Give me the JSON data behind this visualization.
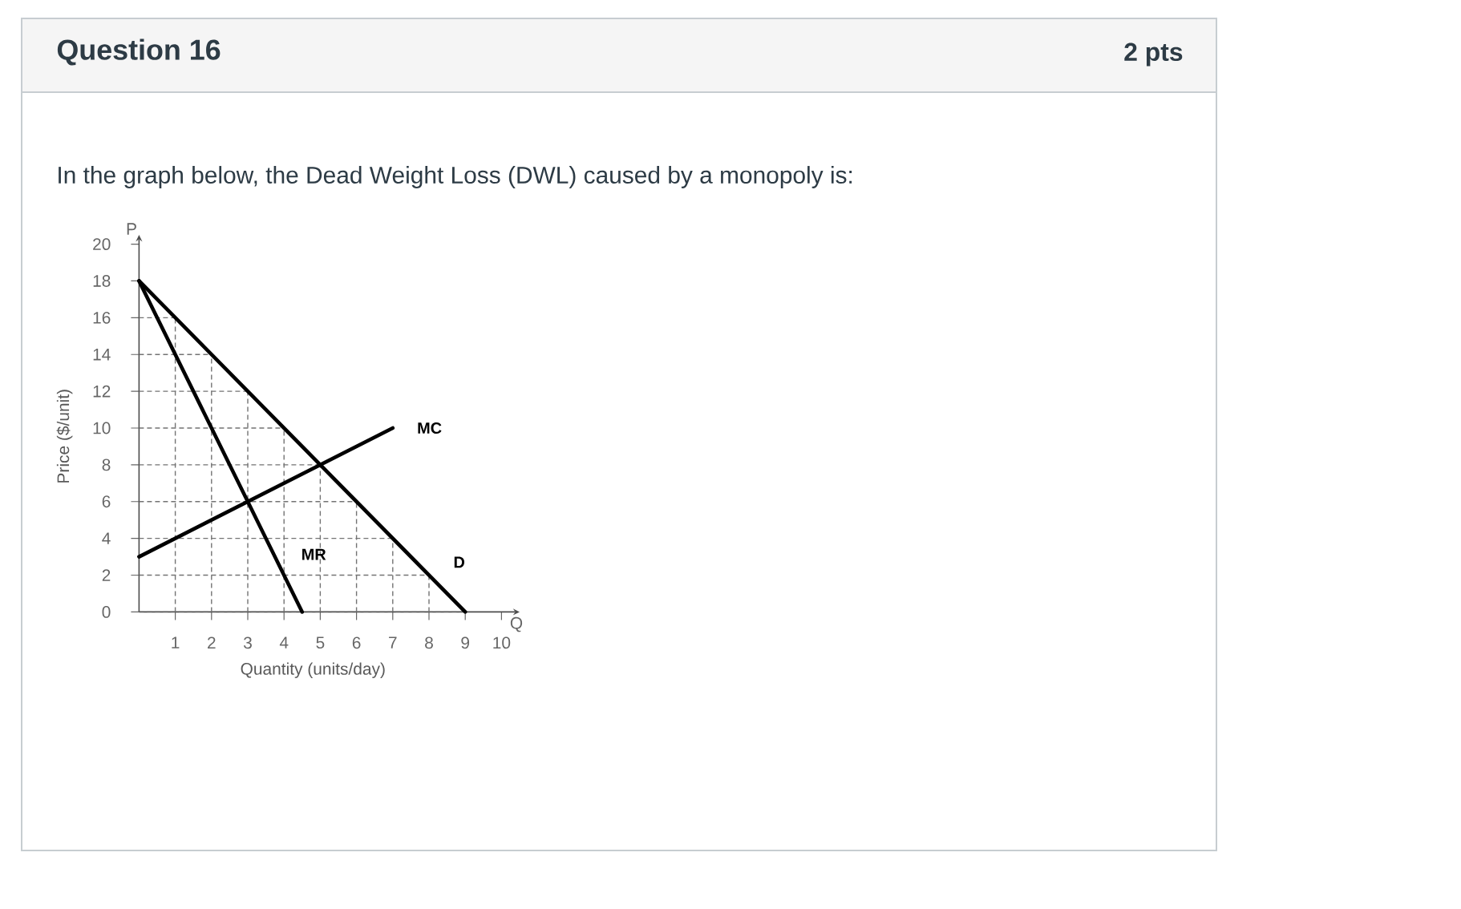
{
  "chart_data": {
    "type": "line",
    "title": "Question 16",
    "subtitle": "In the graph below, the Dead Weight Loss (DWL) caused by a monopoly is:",
    "xlabel": "Quantity (units/day)",
    "ylabel": "Price ($/unit)",
    "annotations": [
      "2 pts",
      "P",
      "Q"
    ],
    "series": [
      {
        "name": "D",
        "color": "#000000",
        "x": [
          0,
          9
        ],
        "values": [
          18,
          0
        ]
      },
      {
        "name": "MR",
        "color": "#000000",
        "x": [
          0,
          4.5
        ],
        "values": [
          18,
          0
        ]
      },
      {
        "name": "MC",
        "color": "#000000",
        "x": [
          0,
          7
        ],
        "values": [
          3,
          10
        ]
      }
    ],
    "xlim": [
      0,
      10.5
    ],
    "ylim": [
      0,
      20.5
    ],
    "xticks": [
      1,
      2,
      3,
      4,
      5,
      6,
      7,
      8,
      9,
      10
    ],
    "yticks": [
      0,
      2,
      4,
      6,
      8,
      10,
      12,
      14,
      16,
      18,
      20
    ],
    "grid": true,
    "line_style": "solid"
  }
}
